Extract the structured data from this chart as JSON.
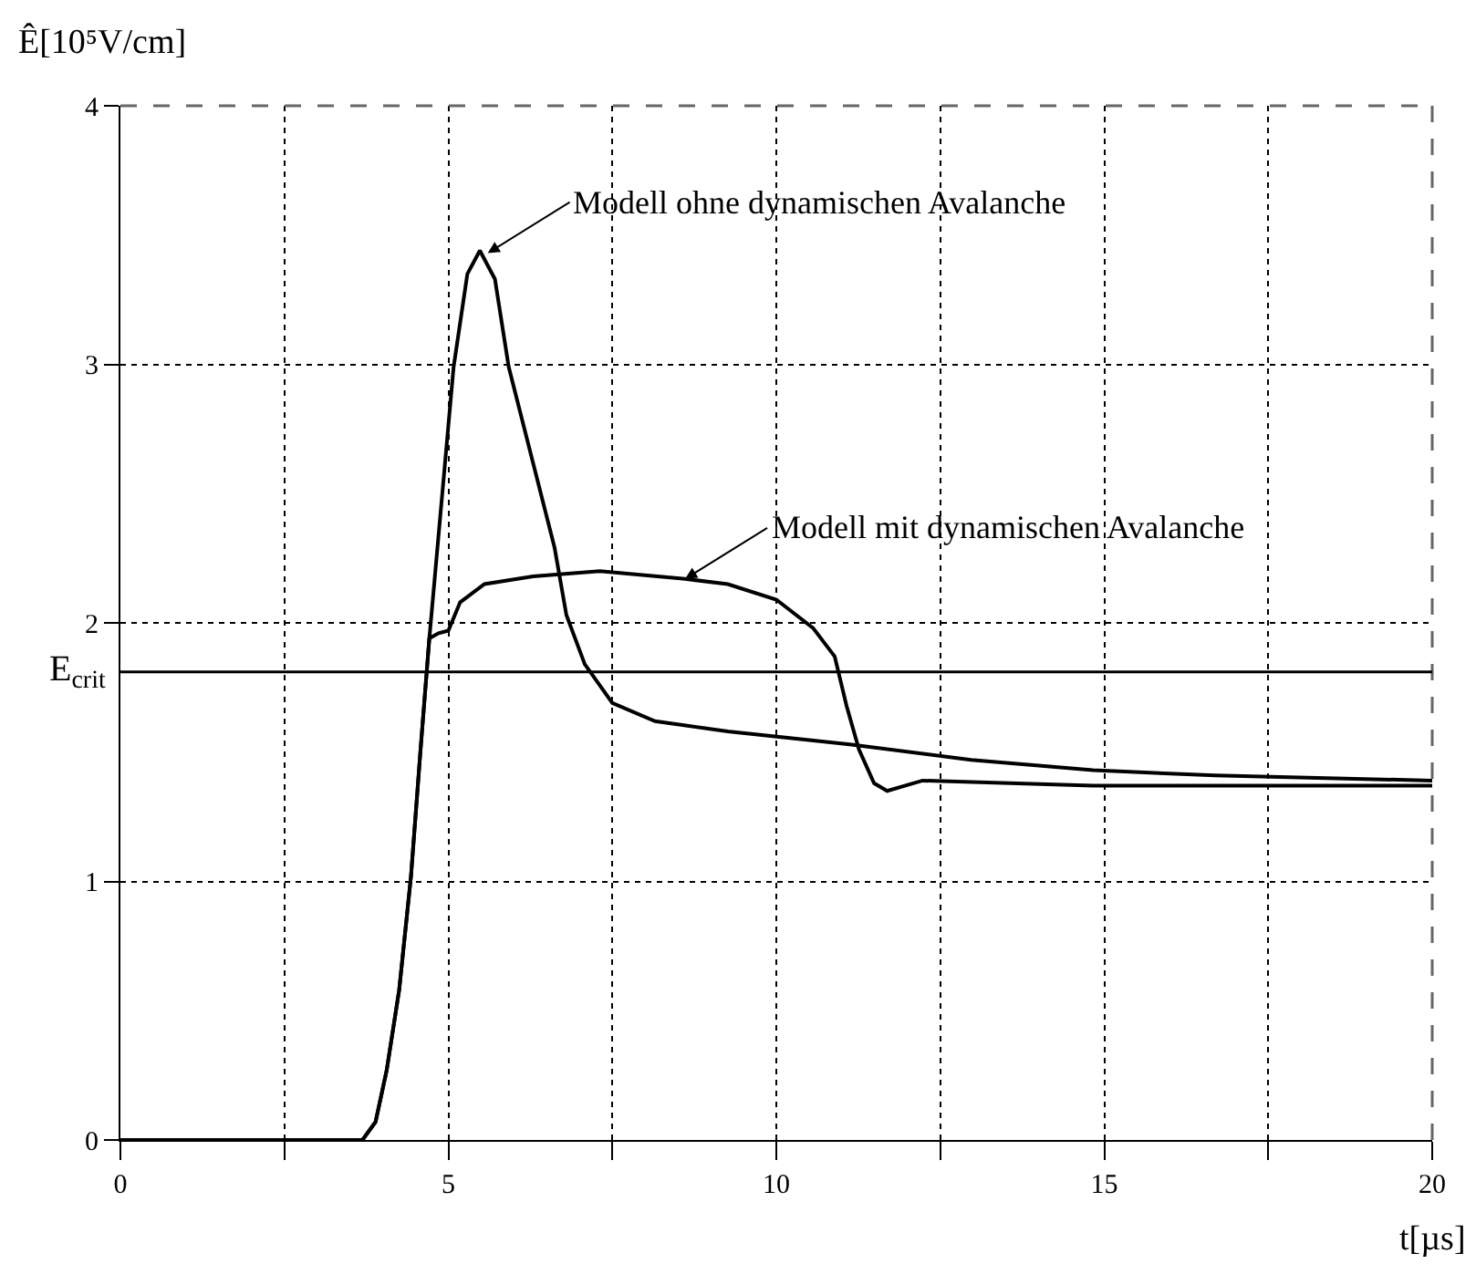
{
  "chart_data": {
    "type": "line",
    "xlabel": "t[µs]",
    "ylabel": "Ê[10⁵V/cm]",
    "xlim": [
      0,
      20
    ],
    "ylim": [
      0,
      4
    ],
    "xticks": [
      0,
      {
        "value": 2.5,
        "label": null
      },
      5,
      {
        "value": 7.5,
        "label": null
      },
      10,
      {
        "value": 12.5,
        "label": null
      },
      15,
      {
        "value": 17.5,
        "label": null
      },
      20
    ],
    "yticks": [
      0,
      1,
      2,
      3,
      4
    ],
    "grid": true,
    "marker": "none",
    "line_style": "solid",
    "series": [
      {
        "color": "#000000",
        "x": [
          0,
          3.69,
          3.89,
          4.06,
          4.25,
          4.43,
          4.57,
          4.71,
          5.08,
          5.29,
          5.48,
          5.71,
          5.92,
          6.29,
          6.62,
          6.8,
          7.08,
          7.5,
          8.15,
          9.26,
          11.12,
          12.97,
          14.83,
          16.69,
          20
        ],
        "values": [
          0,
          0,
          0.07,
          0.27,
          0.58,
          1.02,
          1.49,
          1.94,
          2.99,
          3.35,
          3.44,
          3.33,
          2.99,
          2.62,
          2.29,
          2.03,
          1.84,
          1.69,
          1.62,
          1.58,
          1.53,
          1.47,
          1.43,
          1.41,
          1.39
        ]
      },
      {
        "color": "#000000",
        "x": [
          0,
          3.69,
          3.89,
          4.06,
          4.25,
          4.43,
          4.57,
          4.71,
          4.85,
          5.0,
          5.18,
          5.55,
          6.29,
          7.31,
          8.61,
          9.26,
          10.0,
          10.56,
          10.89,
          11.07,
          11.26,
          11.49,
          11.69,
          12.23,
          14.83,
          20
        ],
        "values": [
          0,
          0,
          0.07,
          0.27,
          0.58,
          1.02,
          1.49,
          1.94,
          1.96,
          1.97,
          2.08,
          2.15,
          2.18,
          2.2,
          2.17,
          2.15,
          2.09,
          1.98,
          1.87,
          1.68,
          1.51,
          1.38,
          1.35,
          1.39,
          1.37,
          1.37
        ]
      }
    ],
    "ref_lines": [
      {
        "axis": "y",
        "value": 1.81,
        "label": "E$_{crit}$",
        "color": "#000000",
        "line_style": "solid"
      }
    ],
    "annotations": [
      {
        "text": "Modell ohne dynamischen Avalanche",
        "x": 5.6,
        "y": 3.43
      },
      {
        "text": "Modell mit dynamischen Avalanche",
        "x": 8.61,
        "y": 2.17
      }
    ]
  }
}
